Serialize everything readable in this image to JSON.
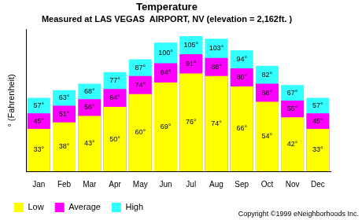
{
  "chart_data": {
    "type": "bar",
    "title": "Temperature",
    "subtitle": "Measured at LAS VEGAS  AIRPORT, NV (elevation = 2,162ft. )",
    "ylabel": "° (Fahrenheit)",
    "annotations": [
      "Copyright ©1999 eNeighborhoods Inc."
    ],
    "categories": [
      "Jan",
      "Feb",
      "Mar",
      "Apr",
      "May",
      "Jun",
      "Jul",
      "Aug",
      "Sep",
      "Oct",
      "Nov",
      "Dec"
    ],
    "series": [
      {
        "name": "Low",
        "color": "#ffff00",
        "values": [
          33,
          38,
          43,
          50,
          60,
          69,
          76,
          74,
          66,
          54,
          42,
          33
        ],
        "value_labels": [
          "33°",
          "38°",
          "43°",
          "50°",
          "60°",
          "69°",
          "76°",
          "74°",
          "66°",
          "54°",
          "42°",
          "33°"
        ]
      },
      {
        "name": "Average",
        "color": "#ff00ff",
        "values": [
          45,
          51,
          56,
          64,
          74,
          84,
          91,
          88,
          80,
          68,
          55,
          45
        ],
        "value_labels": [
          "45°",
          "51°",
          "56°",
          "64°",
          "74°",
          "84°",
          "91°",
          "88°",
          "80°",
          "68°",
          "55°",
          "45°"
        ]
      },
      {
        "name": "High",
        "color": "#33ffff",
        "values": [
          57,
          63,
          68,
          77,
          87,
          100,
          105,
          103,
          94,
          82,
          67,
          57
        ],
        "value_labels": [
          "57°",
          "63°",
          "68°",
          "77°",
          "87°",
          "100°",
          "105°",
          "103°",
          "94°",
          "82°",
          "67°",
          "57°"
        ]
      }
    ],
    "ylim": [
      0,
      110
    ],
    "grid": false,
    "legend": "bottom",
    "data_labels": true,
    "tick_labels": "x"
  }
}
